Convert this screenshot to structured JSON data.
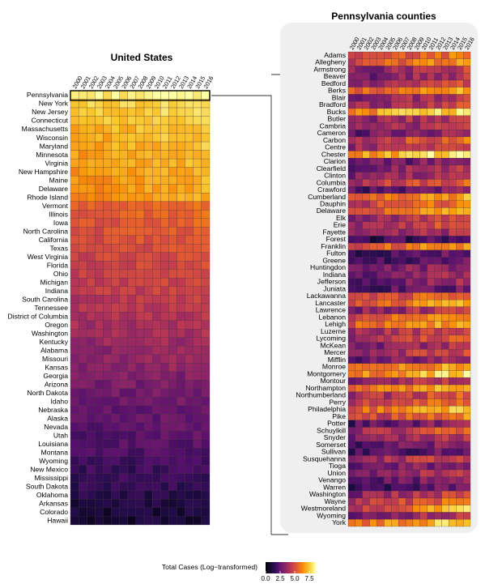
{
  "chart_data": [
    {
      "type": "heatmap",
      "title": "United States",
      "x": [
        "2000",
        "2001",
        "2002",
        "2003",
        "2004",
        "2005",
        "2006",
        "2007",
        "2008",
        "2009",
        "2010",
        "2011",
        "2012",
        "2013",
        "2014",
        "2015",
        "2016"
      ],
      "rows": [
        "Pennsylvania",
        "New York",
        "New Jersey",
        "Connecticut",
        "Massachusetts",
        "Wisconsin",
        "Maryland",
        "Minnesota",
        "Virginia",
        "New Hampshire",
        "Maine",
        "Delaware",
        "Rhode Island",
        "Vermont",
        "Illinois",
        "Iowa",
        "North Carolina",
        "California",
        "Texas",
        "West Virginia",
        "Florida",
        "Ohio",
        "Michigan",
        "Indiana",
        "South Carolina",
        "Tennessee",
        "District of Columbia",
        "Oregon",
        "Washington",
        "Kentucky",
        "Alabama",
        "Missouri",
        "Kansas",
        "Georgia",
        "Arizona",
        "North Dakota",
        "Idaho",
        "Nebraska",
        "Alaska",
        "Nevada",
        "Utah",
        "Louisiana",
        "Montana",
        "Wyoming",
        "New Mexico",
        "Mississippi",
        "South Dakota",
        "Oklahoma",
        "Arkansas",
        "Colorado",
        "Hawaii"
      ],
      "row_level_start": [
        8.2,
        7.6,
        7.4,
        7.2,
        7.0,
        6.9,
        6.8,
        6.7,
        6.6,
        6.5,
        6.4,
        6.3,
        6.2,
        5.3,
        5.2,
        5.1,
        5.0,
        4.9,
        4.8,
        4.7,
        4.6,
        4.5,
        4.4,
        4.3,
        4.2,
        4.1,
        3.9,
        3.8,
        3.7,
        3.5,
        3.4,
        3.3,
        3.2,
        2.9,
        2.8,
        2.6,
        2.5,
        2.4,
        2.3,
        2.2,
        2.1,
        2.0,
        1.9,
        1.7,
        1.6,
        1.5,
        1.4,
        1.2,
        1.0,
        0.9,
        0.8
      ],
      "row_level_end": [
        8.5,
        8.0,
        7.9,
        7.8,
        7.7,
        7.6,
        7.5,
        7.4,
        7.3,
        7.3,
        7.2,
        7.1,
        7.0,
        5.9,
        5.8,
        5.6,
        5.5,
        5.4,
        5.3,
        5.2,
        5.1,
        5.0,
        4.9,
        4.8,
        4.6,
        4.5,
        4.3,
        4.1,
        4.0,
        3.8,
        3.7,
        3.6,
        3.5,
        3.2,
        3.1,
        2.9,
        2.8,
        2.7,
        2.6,
        2.5,
        2.4,
        2.3,
        2.1,
        1.9,
        1.8,
        1.7,
        1.6,
        1.3,
        1.1,
        1.0,
        0.9
      ],
      "legend_title": "Total Cases (Log−transformed)",
      "legend_ticks": [
        "0.0",
        "2.5",
        "5.0",
        "7.5"
      ],
      "legend_range": [
        0,
        8.6
      ],
      "colormap": "inferno"
    },
    {
      "type": "heatmap",
      "title": "Pennsylvania counties",
      "x": [
        "2000",
        "2001",
        "2002",
        "2003",
        "2004",
        "2005",
        "2006",
        "2007",
        "2008",
        "2009",
        "2010",
        "2011",
        "2012",
        "2013",
        "2014",
        "2015",
        "2016"
      ],
      "rows": [
        "Adams",
        "Allegheny",
        "Armstrong",
        "Beaver",
        "Bedford",
        "Berks",
        "Blair",
        "Bradford",
        "Bucks",
        "Butler",
        "Cambria",
        "Cameron",
        "Carbon",
        "Centre",
        "Chester",
        "Clarion",
        "Clearfield",
        "Clinton",
        "Columbia",
        "Crawford",
        "Cumberland",
        "Dauphin",
        "Delaware",
        "Elk",
        "Erie",
        "Fayette",
        "Forest",
        "Franklin",
        "Fulton",
        "Greene",
        "Huntingdon",
        "Indiana",
        "Jefferson",
        "Juniata",
        "Lackawanna",
        "Lancaster",
        "Lawrence",
        "Lebanon",
        "Lehigh",
        "Luzerne",
        "Lycoming",
        "McKean",
        "Mercer",
        "Mifflin",
        "Monroe",
        "Montgomery",
        "Montour",
        "Northampton",
        "Northumberland",
        "Perry",
        "Philadelphia",
        "Pike",
        "Potter",
        "Schuylkill",
        "Snyder",
        "Somerset",
        "Sullivan",
        "Susquehanna",
        "Tioga",
        "Union",
        "Venango",
        "Warren",
        "Washington",
        "Wayne",
        "Westmoreland",
        "Wyoming",
        "York"
      ],
      "row_level_start": [
        4.2,
        4.6,
        3.0,
        2.6,
        3.2,
        5.0,
        2.8,
        3.3,
        6.2,
        3.0,
        3.2,
        2.5,
        4.0,
        3.4,
        6.4,
        2.2,
        2.8,
        2.9,
        3.8,
        2.0,
        5.0,
        4.3,
        5.2,
        3.2,
        3.6,
        2.8,
        1.2,
        4.8,
        1.4,
        1.6,
        2.4,
        2.5,
        2.3,
        1.6,
        4.2,
        5.0,
        3.0,
        4.8,
        5.2,
        3.5,
        3.6,
        2.8,
        3.4,
        2.4,
        5.2,
        6.0,
        3.0,
        5.6,
        3.6,
        4.2,
        5.4,
        4.4,
        2.0,
        3.6,
        3.0,
        2.0,
        1.6,
        3.2,
        2.2,
        3.0,
        2.0,
        1.6,
        3.2,
        4.0,
        3.8,
        2.8,
        5.6
      ],
      "row_level_end": [
        6.2,
        7.0,
        4.6,
        4.2,
        4.8,
        7.2,
        4.4,
        4.8,
        8.2,
        4.6,
        4.4,
        3.8,
        6.0,
        5.0,
        8.4,
        3.4,
        4.2,
        4.2,
        5.6,
        3.4,
        7.0,
        6.2,
        7.2,
        4.8,
        5.2,
        4.2,
        2.4,
        6.8,
        2.6,
        3.0,
        3.6,
        3.8,
        3.6,
        2.8,
        6.0,
        7.2,
        4.6,
        6.8,
        7.2,
        5.2,
        5.4,
        4.2,
        5.0,
        3.8,
        7.2,
        8.0,
        4.6,
        7.6,
        5.4,
        6.0,
        7.4,
        6.2,
        3.4,
        5.4,
        4.4,
        3.4,
        2.8,
        4.8,
        3.6,
        4.4,
        3.4,
        2.8,
        4.8,
        6.0,
        7.6,
        4.2,
        7.8
      ],
      "legend_range": [
        0,
        8.6
      ],
      "colormap": "inferno"
    }
  ]
}
